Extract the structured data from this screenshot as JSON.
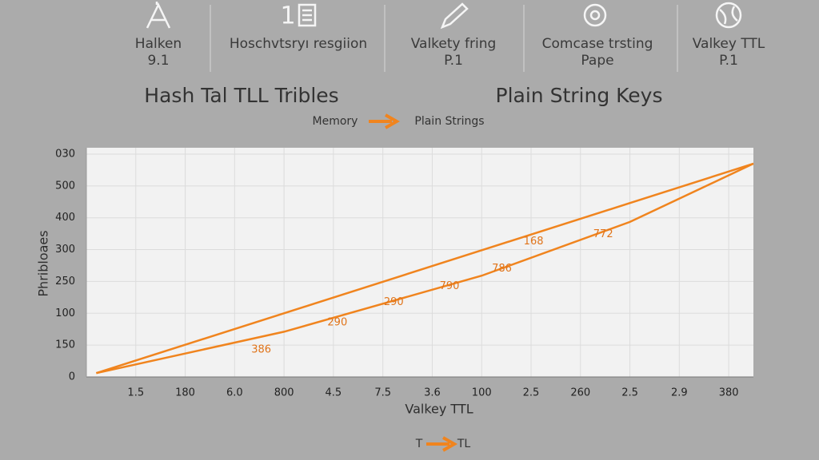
{
  "header": {
    "items": [
      {
        "label": "Halken",
        "sub": "9.1"
      },
      {
        "icon_text": "1",
        "label": "Hoschvtsryı resgiion"
      },
      {
        "label": "Valkety fring",
        "sub": "P.1"
      },
      {
        "label": "Comcase trsting",
        "sub": "Pape"
      },
      {
        "label": "Valkey TTL",
        "sub": "P.1"
      }
    ]
  },
  "titles": [
    "Hash Tal TLL Tribles",
    "Plain String Keys"
  ],
  "flow": {
    "from": "Memory",
    "to": "Plain Strings"
  },
  "footer_flow": {
    "from": "T",
    "to": "TL"
  },
  "chart_data": {
    "type": "line",
    "x_label": "Valkey TTL",
    "y_label": "Phribloaes",
    "xlim": [
      0,
      13.5
    ],
    "ylim": [
      0,
      720
    ],
    "xticks": [
      {
        "value": 1,
        "label": "1.5"
      },
      {
        "value": 2,
        "label": "180"
      },
      {
        "value": 3,
        "label": "6.0"
      },
      {
        "value": 4,
        "label": "800"
      },
      {
        "value": 5,
        "label": "4.5"
      },
      {
        "value": 6,
        "label": "7.5"
      },
      {
        "value": 7,
        "label": "3.6"
      },
      {
        "value": 8,
        "label": "100"
      },
      {
        "value": 9,
        "label": "2.5"
      },
      {
        "value": 10,
        "label": "260"
      },
      {
        "value": 11,
        "label": "2.5"
      },
      {
        "value": 12,
        "label": "2.9"
      },
      {
        "value": 13,
        "label": "380"
      }
    ],
    "yticks": [
      0,
      {
        "value": 100,
        "label": "150"
      },
      {
        "value": 200,
        "label": "100"
      },
      {
        "value": 300,
        "label": "250"
      },
      {
        "value": 400,
        "label": "300"
      },
      {
        "value": 500,
        "label": "400"
      },
      {
        "value": 600,
        "label": "500"
      },
      {
        "value": 700,
        "label": "030"
      }
    ],
    "grid": true,
    "series": [
      {
        "color": "#f0841e",
        "x": [
          0.2,
          13.5
        ],
        "values": [
          12,
          670
        ]
      },
      {
        "color": "#f0841e",
        "x": [
          0.2,
          4,
          8,
          11,
          13.5
        ],
        "values": [
          12,
          142,
          318,
          487,
          670
        ]
      }
    ],
    "annotations": [
      {
        "text": "386",
        "x": 3.54,
        "y": 85
      },
      {
        "text": "290",
        "x": 5.08,
        "y": 170
      },
      {
        "text": "290",
        "x": 6.22,
        "y": 235
      },
      {
        "text": "790",
        "x": 7.35,
        "y": 285
      },
      {
        "text": "786",
        "x": 8.41,
        "y": 340
      },
      {
        "text": "168",
        "x": 9.05,
        "y": 425
      },
      {
        "text": "772",
        "x": 10.46,
        "y": 448
      }
    ]
  }
}
